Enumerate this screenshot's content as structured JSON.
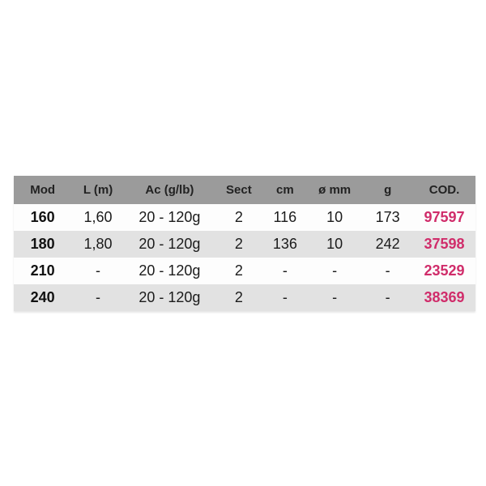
{
  "table": {
    "headers": [
      "Mod",
      "L (m)",
      "Ac (g/lb)",
      "Sect",
      "cm",
      "ø mm",
      "g",
      "COD."
    ],
    "rows": [
      [
        "160",
        "1,60",
        "20 - 120g",
        "2",
        "116",
        "10",
        "173",
        "97597"
      ],
      [
        "180",
        "1,80",
        "20 - 120g",
        "2",
        "136",
        "10",
        "242",
        "37598"
      ],
      [
        "210",
        "-",
        "20 - 120g",
        "2",
        "-",
        "-",
        "-",
        "23529"
      ],
      [
        "240",
        "-",
        "20 - 120g",
        "2",
        "-",
        "-",
        "-",
        "38369"
      ]
    ],
    "colors": {
      "header_bg": "#9b9b9b",
      "row_bg": "#fdfdfd",
      "row_alt_bg": "#e2e2e2",
      "text": "#1b1b1b",
      "code_accent": "#d02c6a"
    }
  }
}
